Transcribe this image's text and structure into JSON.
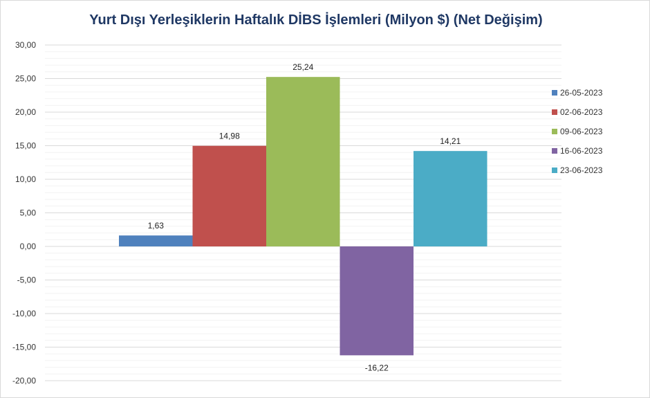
{
  "chart_data": {
    "type": "bar",
    "title": "Yurt Dışı Yerleşiklerin Haftalık DİBS İşlemleri (Milyon $) (Net Değişim)",
    "categories": [
      "26-05-2023",
      "02-06-2023",
      "09-06-2023",
      "16-06-2023",
      "23-06-2023"
    ],
    "values": [
      1.63,
      14.98,
      25.24,
      -16.22,
      14.21
    ],
    "value_labels": [
      "1,63",
      "14,98",
      "25,24",
      "-16,22",
      "14,21"
    ],
    "colors": [
      "#4f81bd",
      "#c0504d",
      "#9bbb59",
      "#8064a2",
      "#4bacc6"
    ],
    "ylim": [
      -20,
      30
    ],
    "yticks": [
      30,
      25,
      20,
      15,
      10,
      5,
      0,
      -5,
      -10,
      -15,
      -20
    ],
    "ytick_labels": [
      "30,00",
      "25,00",
      "20,00",
      "15,00",
      "10,00",
      "5,00",
      "0,00",
      "-5,00",
      "-10,00",
      "-15,00",
      "-20,00"
    ],
    "grid": true,
    "legend_position": "right"
  }
}
